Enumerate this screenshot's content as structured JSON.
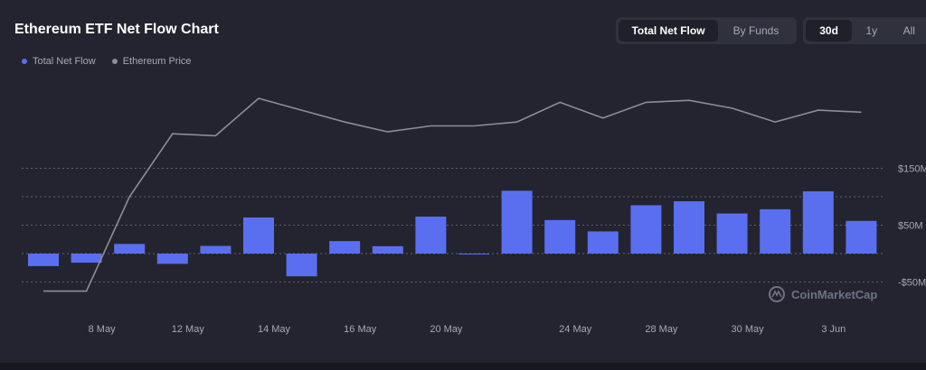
{
  "title": "Ethereum ETF Net Flow Chart",
  "view_tabs": [
    {
      "label": "Total Net Flow",
      "active": true
    },
    {
      "label": "By Funds",
      "active": false
    }
  ],
  "range_tabs": [
    {
      "label": "30d",
      "active": true
    },
    {
      "label": "1y",
      "active": false
    },
    {
      "label": "All",
      "active": false
    }
  ],
  "legend": [
    {
      "label": "Total Net Flow",
      "color": "#5a6ff0"
    },
    {
      "label": "Ethereum Price",
      "color": "#8b8d98"
    }
  ],
  "watermark": "CoinMarketCap",
  "chart_data": {
    "type": "bar",
    "bar_color": "#5a6ff0",
    "line_color": "#8b8d98",
    "grid": true,
    "yticks": [
      {
        "value": 150,
        "label": "$150M"
      },
      {
        "value": 50,
        "label": "$50M"
      },
      {
        "value": -50,
        "label": "-$50M"
      }
    ],
    "ylim": [
      -50,
      150
    ],
    "x_ticks": [
      {
        "index": 1,
        "label": "8 May"
      },
      {
        "index": 3,
        "label": "12 May"
      },
      {
        "index": 5,
        "label": "14 May"
      },
      {
        "index": 7,
        "label": "16 May"
      },
      {
        "index": 9,
        "label": "20 May"
      },
      {
        "index": 12,
        "label": "24 May"
      },
      {
        "index": 14,
        "label": "28 May"
      },
      {
        "index": 16,
        "label": "30 May"
      },
      {
        "index": 18,
        "label": "3 Jun"
      }
    ],
    "series": [
      {
        "type": "bar",
        "values": [
          -22,
          -16,
          17,
          -18,
          13.5,
          63.5,
          -40,
          22,
          13,
          65,
          -1,
          110.5,
          59,
          39,
          85,
          92,
          70.5,
          78,
          109.5,
          57.5
        ]
      },
      {
        "type": "line",
        "relative_values": [
          0.02,
          0.02,
          0.5,
          0.82,
          0.81,
          1.0,
          0.94,
          0.88,
          0.83,
          0.86,
          0.86,
          0.88,
          0.98,
          0.9,
          0.98,
          0.99,
          0.95,
          0.88,
          0.94,
          0.93
        ]
      }
    ]
  }
}
